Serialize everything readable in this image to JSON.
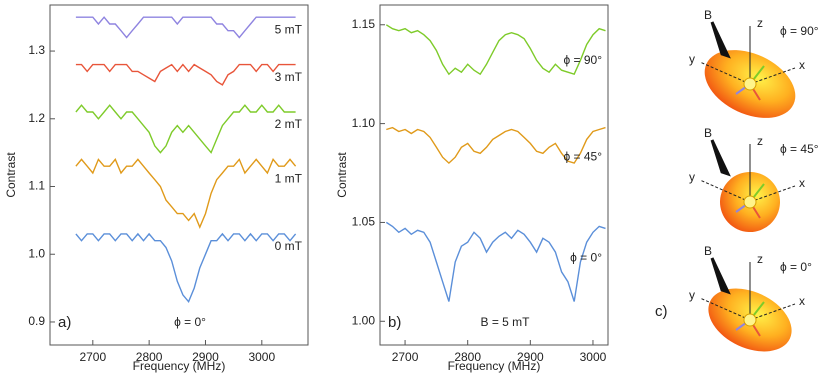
{
  "chart_data": [
    {
      "type": "line",
      "panel_label": "a)",
      "annotation": "ϕ = 0°",
      "x_label": "Frequency (MHz)",
      "y_label": "Contrast",
      "x": [
        2670,
        2680,
        2690,
        2700,
        2710,
        2720,
        2730,
        2740,
        2750,
        2760,
        2770,
        2780,
        2790,
        2800,
        2810,
        2820,
        2830,
        2840,
        2850,
        2860,
        2870,
        2880,
        2890,
        2900,
        2910,
        2920,
        2930,
        2940,
        2950,
        2960,
        2970,
        2980,
        2990,
        3000,
        3010,
        3020,
        3030,
        3040,
        3050,
        3060
      ],
      "xlim": [
        2624,
        3082
      ],
      "xticks": [
        2700,
        2800,
        2900,
        3000
      ],
      "ylim": [
        0.866,
        1.368
      ],
      "yticks": [
        0.9,
        {
          "value": 1.0,
          "label": "1.0"
        },
        1.1,
        1.2,
        1.3
      ],
      "grid": false,
      "series": [
        {
          "name": "0 mT",
          "color": "#5b8fd9",
          "values": [
            1.03,
            1.02,
            1.03,
            1.03,
            1.02,
            1.03,
            1.03,
            1.02,
            1.03,
            1.03,
            1.02,
            1.03,
            1.02,
            1.03,
            1.02,
            1.02,
            1.01,
            0.99,
            0.96,
            0.94,
            0.93,
            0.95,
            0.98,
            1.0,
            1.02,
            1.02,
            1.03,
            1.02,
            1.03,
            1.03,
            1.02,
            1.03,
            1.02,
            1.03,
            1.03,
            1.02,
            1.03,
            1.03,
            1.02,
            1.03
          ]
        },
        {
          "name": "1 mT",
          "color": "#e09a1a",
          "values": [
            1.13,
            1.14,
            1.13,
            1.12,
            1.14,
            1.13,
            1.13,
            1.14,
            1.12,
            1.13,
            1.13,
            1.14,
            1.13,
            1.12,
            1.11,
            1.1,
            1.08,
            1.07,
            1.06,
            1.06,
            1.05,
            1.06,
            1.04,
            1.06,
            1.09,
            1.11,
            1.12,
            1.13,
            1.13,
            1.14,
            1.12,
            1.13,
            1.14,
            1.13,
            1.12,
            1.14,
            1.13,
            1.13,
            1.14,
            1.13
          ]
        },
        {
          "name": "2 mT",
          "color": "#7ecb2a",
          "values": [
            1.21,
            1.22,
            1.21,
            1.21,
            1.2,
            1.21,
            1.22,
            1.21,
            1.2,
            1.21,
            1.21,
            1.2,
            1.19,
            1.18,
            1.16,
            1.15,
            1.16,
            1.18,
            1.19,
            1.18,
            1.19,
            1.18,
            1.17,
            1.16,
            1.15,
            1.17,
            1.19,
            1.2,
            1.21,
            1.21,
            1.22,
            1.21,
            1.21,
            1.22,
            1.21,
            1.21,
            1.22,
            1.21,
            1.21,
            1.21
          ]
        },
        {
          "name": "3 mT",
          "color": "#e8553a",
          "values": [
            1.28,
            1.28,
            1.27,
            1.28,
            1.28,
            1.28,
            1.27,
            1.28,
            1.28,
            1.28,
            1.27,
            1.27,
            1.265,
            1.26,
            1.255,
            1.27,
            1.275,
            1.28,
            1.27,
            1.28,
            1.27,
            1.28,
            1.275,
            1.27,
            1.265,
            1.255,
            1.25,
            1.265,
            1.27,
            1.28,
            1.28,
            1.28,
            1.27,
            1.28,
            1.28,
            1.27,
            1.28,
            1.28,
            1.28,
            1.28
          ]
        },
        {
          "name": "5 mT",
          "color": "#8f84e0",
          "values": [
            1.35,
            1.35,
            1.35,
            1.35,
            1.34,
            1.35,
            1.34,
            1.34,
            1.33,
            1.32,
            1.33,
            1.34,
            1.35,
            1.35,
            1.35,
            1.35,
            1.35,
            1.35,
            1.34,
            1.35,
            1.35,
            1.35,
            1.35,
            1.35,
            1.35,
            1.34,
            1.34,
            1.33,
            1.33,
            1.32,
            1.33,
            1.34,
            1.35,
            1.35,
            1.35,
            1.35,
            1.35,
            1.35,
            1.35,
            1.35
          ]
        }
      ]
    },
    {
      "type": "line",
      "panel_label": "b)",
      "annotation": "B = 5 mT",
      "x_label": "Frequency (MHz)",
      "y_label": "Contrast",
      "x": [
        2670,
        2680,
        2690,
        2700,
        2710,
        2720,
        2730,
        2740,
        2750,
        2760,
        2770,
        2780,
        2790,
        2800,
        2810,
        2820,
        2830,
        2840,
        2850,
        2860,
        2870,
        2880,
        2890,
        2900,
        2910,
        2920,
        2930,
        2940,
        2950,
        2960,
        2970,
        2980,
        2990,
        3000,
        3010,
        3020
      ],
      "xlim": [
        2660,
        3024
      ],
      "xticks": [
        2700,
        2800,
        2900,
        3000
      ],
      "ylim": [
        0.988,
        1.16
      ],
      "yticks": [
        {
          "value": 1.0,
          "label": "1.00"
        },
        1.05,
        {
          "value": 1.1,
          "label": "1.10"
        },
        1.15
      ],
      "grid": false,
      "series": [
        {
          "name": "ϕ = 0°",
          "color": "#5b8fd9",
          "values": [
            1.05,
            1.048,
            1.045,
            1.047,
            1.044,
            1.046,
            1.045,
            1.04,
            1.03,
            1.02,
            1.01,
            1.03,
            1.038,
            1.04,
            1.045,
            1.042,
            1.035,
            1.04,
            1.043,
            1.045,
            1.042,
            1.046,
            1.044,
            1.04,
            1.035,
            1.042,
            1.04,
            1.035,
            1.025,
            1.02,
            1.01,
            1.03,
            1.04,
            1.045,
            1.048,
            1.047
          ]
        },
        {
          "name": "ϕ = 45°",
          "color": "#e09a1a",
          "values": [
            1.097,
            1.098,
            1.096,
            1.097,
            1.095,
            1.097,
            1.096,
            1.093,
            1.088,
            1.083,
            1.08,
            1.083,
            1.088,
            1.09,
            1.086,
            1.085,
            1.088,
            1.092,
            1.094,
            1.096,
            1.097,
            1.096,
            1.093,
            1.09,
            1.086,
            1.085,
            1.088,
            1.09,
            1.085,
            1.081,
            1.08,
            1.085,
            1.092,
            1.096,
            1.097,
            1.098
          ]
        },
        {
          "name": "ϕ = 90°",
          "color": "#7ecb2a",
          "values": [
            1.15,
            1.148,
            1.147,
            1.148,
            1.146,
            1.147,
            1.145,
            1.142,
            1.137,
            1.13,
            1.125,
            1.128,
            1.126,
            1.13,
            1.127,
            1.125,
            1.13,
            1.136,
            1.142,
            1.145,
            1.146,
            1.145,
            1.143,
            1.138,
            1.132,
            1.128,
            1.126,
            1.13,
            1.127,
            1.126,
            1.125,
            1.132,
            1.14,
            1.145,
            1.148,
            1.147
          ]
        }
      ]
    }
  ],
  "diagram": {
    "panel_label": "c)",
    "panels": [
      {
        "angle": "ϕ = 90°",
        "field": "B",
        "z": "z",
        "y": "y",
        "x": "x"
      },
      {
        "angle": "ϕ = 45°",
        "field": "B",
        "z": "z",
        "y": "y",
        "x": "x"
      },
      {
        "angle": "ϕ = 0°",
        "field": "B",
        "z": "z",
        "y": "y",
        "x": "x"
      }
    ]
  }
}
